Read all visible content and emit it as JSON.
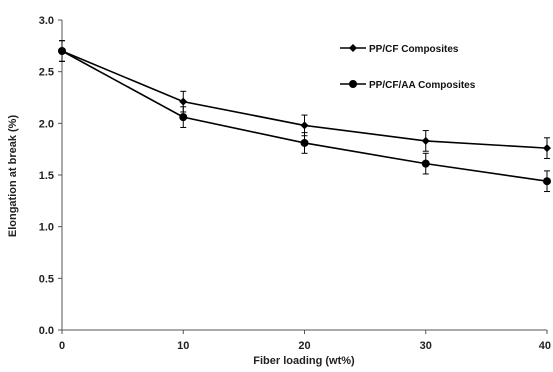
{
  "chart_data": {
    "type": "line",
    "title": "",
    "xlabel": "Fiber loading (wt%)",
    "ylabel": "Elongation at break (%)",
    "xlim": [
      0,
      40
    ],
    "ylim": [
      0.0,
      3.0
    ],
    "x_ticks": [
      "0",
      "10",
      "20",
      "30",
      "40"
    ],
    "y_ticks": [
      "0.0",
      "0.5",
      "1.0",
      "1.5",
      "2.0",
      "2.5",
      "3.0"
    ],
    "grid": false,
    "legend": "top-right",
    "series": [
      {
        "name": "PP/CF Composites",
        "marker": "diamond",
        "x": [
          0,
          10,
          20,
          30,
          40
        ],
        "values": [
          2.7,
          2.21,
          1.98,
          1.83,
          1.76
        ],
        "error": [
          0.1,
          0.1,
          0.1,
          0.1,
          0.1
        ]
      },
      {
        "name": "PP/CF/AA Composites",
        "marker": "circle",
        "x": [
          0,
          10,
          20,
          30,
          40
        ],
        "values": [
          2.7,
          2.06,
          1.81,
          1.61,
          1.44
        ],
        "error": [
          0.1,
          0.1,
          0.1,
          0.1,
          0.1
        ]
      }
    ],
    "color": "#000000"
  }
}
